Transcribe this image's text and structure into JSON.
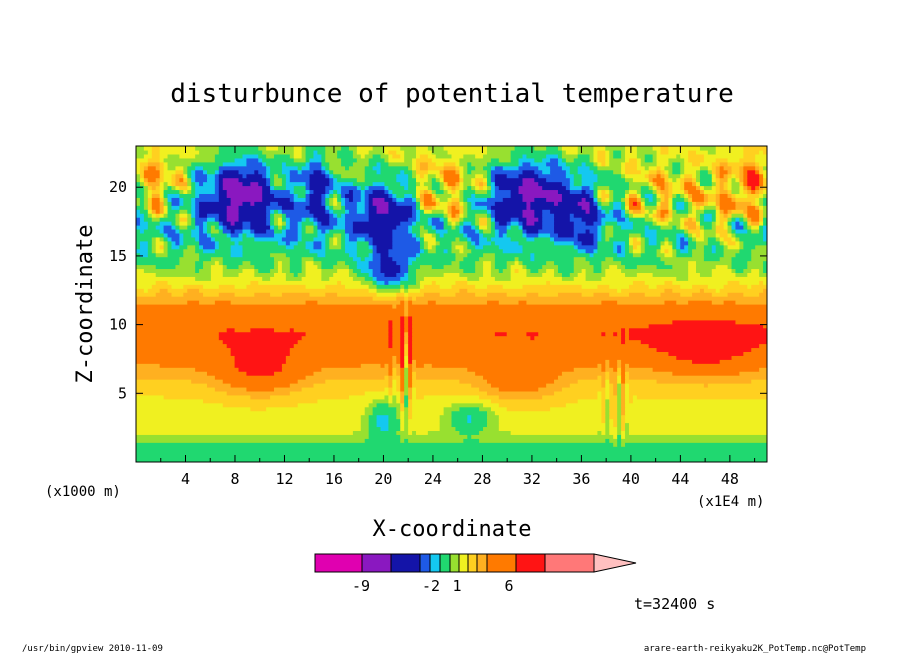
{
  "chart_data": {
    "type": "heatmap",
    "title": "disturbunce of potential temperature",
    "xlabel": "X-coordinate",
    "ylabel": "Z-coordinate",
    "x_unit_note": "(x1E4 m)",
    "y_unit_note": "(x1000 m)",
    "xlim": [
      0,
      51
    ],
    "ylim": [
      0,
      23
    ],
    "x_ticks": [
      "4",
      "8",
      "12",
      "16",
      "20",
      "24",
      "28",
      "32",
      "36",
      "40",
      "44",
      "48"
    ],
    "y_ticks": [
      "5",
      "10",
      "15",
      "20"
    ],
    "colorbar": {
      "colors": [
        "#e000b0",
        "#8a18c0",
        "#1414a8",
        "#1e5ae6",
        "#14c8f0",
        "#20d870",
        "#98e030",
        "#f0f020",
        "#ffd020",
        "#ffb020",
        "#ff7a00",
        "#ff1414",
        "#ff7878",
        "#ffc0c0"
      ],
      "tick_labels": [
        "-9",
        "-2",
        "1",
        "6"
      ]
    },
    "time_label": "t=32400 s",
    "field_summary": [
      {
        "region": "upper layer z 13-22",
        "anomaly": "strongly negative blue cells"
      },
      {
        "region": "mid layer z 5-12",
        "anomaly": "weakly positive orange bands"
      },
      {
        "region": "near x=38-39",
        "anomaly": "vertical mountain-wave streaks"
      }
    ]
  },
  "footer": {
    "left": "/usr/bin/gpview  2010-11-09",
    "right": "arare-earth-reikyaku2K_PotTemp.nc@PotTemp"
  }
}
